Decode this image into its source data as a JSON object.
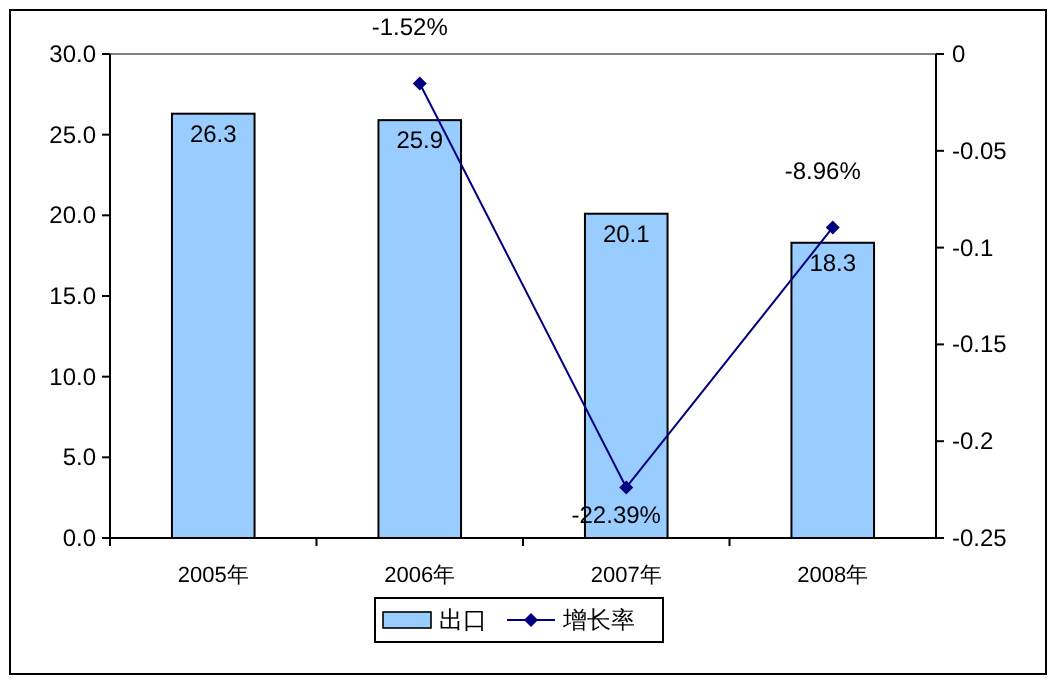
{
  "chart_data": {
    "type": "bar",
    "categories": [
      "2005年",
      "2006年",
      "2007年",
      "2008年"
    ],
    "series": [
      {
        "name": "出口",
        "color": "#99ccff",
        "values": [
          26.3,
          25.9,
          20.1,
          18.3
        ],
        "value_labels": [
          "26.3",
          "25.9",
          "20.1",
          "18.3"
        ]
      },
      {
        "name": "增长率",
        "type": "line",
        "axis": "y2",
        "color": "#000080",
        "values": [
          null,
          -0.0152,
          -0.2239,
          -0.0896
        ],
        "value_labels": [
          null,
          "-1.52%",
          "-22.39%",
          "-8.96%"
        ],
        "marker": "diamond",
        "line_style": "solid"
      }
    ],
    "ylim": [
      0,
      30
    ],
    "yticks": [
      {
        "value": 0,
        "label": "0.0"
      },
      {
        "value": 5,
        "label": "5.0"
      },
      {
        "value": 10,
        "label": "10.0"
      },
      {
        "value": 15,
        "label": "15.0"
      },
      {
        "value": 20,
        "label": "20.0"
      },
      {
        "value": 25,
        "label": "25.0"
      },
      {
        "value": 30,
        "label": "30.0"
      }
    ],
    "y2lim": [
      -0.25,
      0
    ],
    "y2ticks": [
      -0.25,
      -0.2,
      -0.15,
      -0.1,
      -0.05,
      0
    ],
    "grid": false,
    "legend": "bottom"
  }
}
